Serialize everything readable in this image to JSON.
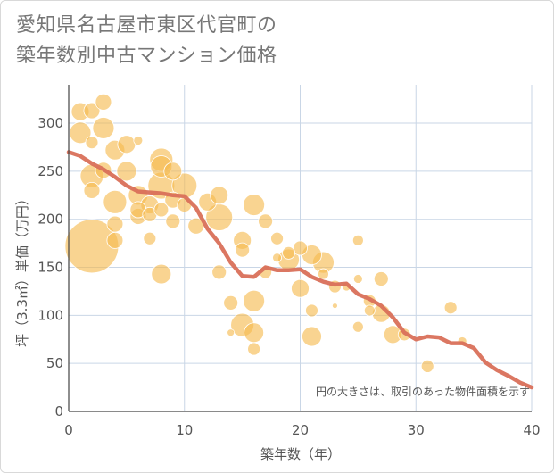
{
  "title_lines": [
    "愛知県名古屋市東区代官町の",
    "築年数別中古マンション価格"
  ],
  "note": "円の大きさは、取引のあった物件面積を示す",
  "colors": {
    "bubble": "#f5b94d",
    "line": "#d9705a",
    "grid": "#c9d6e6"
  },
  "chart_data": {
    "type": "scatter",
    "title": "愛知県名古屋市東区代官町の築年数別中古マンション価格",
    "xlabel": "築年数（年）",
    "ylabel": "坪（3.3㎡）単価（万円）",
    "xlim": [
      0,
      40
    ],
    "ylim": [
      0,
      340
    ],
    "xticks": [
      0,
      10,
      20,
      30,
      40
    ],
    "yticks": [
      0,
      50,
      100,
      150,
      200,
      250,
      300
    ],
    "grid": true,
    "bubbles": [
      {
        "x": 1,
        "y": 312,
        "r": 10
      },
      {
        "x": 2,
        "y": 313,
        "r": 9
      },
      {
        "x": 3,
        "y": 322,
        "r": 9
      },
      {
        "x": 1,
        "y": 290,
        "r": 12
      },
      {
        "x": 2,
        "y": 280,
        "r": 7
      },
      {
        "x": 3,
        "y": 295,
        "r": 12
      },
      {
        "x": 2,
        "y": 245,
        "r": 13
      },
      {
        "x": 3,
        "y": 251,
        "r": 9
      },
      {
        "x": 4,
        "y": 272,
        "r": 11
      },
      {
        "x": 5,
        "y": 278,
        "r": 10
      },
      {
        "x": 6,
        "y": 282,
        "r": 5
      },
      {
        "x": 5,
        "y": 250,
        "r": 11
      },
      {
        "x": 2,
        "y": 230,
        "r": 9
      },
      {
        "x": 4,
        "y": 218,
        "r": 13
      },
      {
        "x": 6,
        "y": 225,
        "r": 11
      },
      {
        "x": 4,
        "y": 195,
        "r": 9
      },
      {
        "x": 6,
        "y": 203,
        "r": 9
      },
      {
        "x": 7,
        "y": 205,
        "r": 8
      },
      {
        "x": 8,
        "y": 262,
        "r": 13
      },
      {
        "x": 8,
        "y": 255,
        "r": 12
      },
      {
        "x": 9,
        "y": 250,
        "r": 10
      },
      {
        "x": 8,
        "y": 235,
        "r": 15
      },
      {
        "x": 10,
        "y": 235,
        "r": 14
      },
      {
        "x": 9,
        "y": 220,
        "r": 9
      },
      {
        "x": 7,
        "y": 215,
        "r": 10
      },
      {
        "x": 6,
        "y": 210,
        "r": 9
      },
      {
        "x": 8,
        "y": 210,
        "r": 8
      },
      {
        "x": 9,
        "y": 198,
        "r": 8
      },
      {
        "x": 7,
        "y": 180,
        "r": 7
      },
      {
        "x": 4,
        "y": 178,
        "r": 9
      },
      {
        "x": 2,
        "y": 172,
        "r": 30
      },
      {
        "x": 8,
        "y": 143,
        "r": 11
      },
      {
        "x": 10,
        "y": 215,
        "r": 8
      },
      {
        "x": 11,
        "y": 193,
        "r": 9
      },
      {
        "x": 12,
        "y": 218,
        "r": 10
      },
      {
        "x": 13,
        "y": 225,
        "r": 10
      },
      {
        "x": 13,
        "y": 202,
        "r": 15
      },
      {
        "x": 13,
        "y": 145,
        "r": 8
      },
      {
        "x": 14,
        "y": 113,
        "r": 8
      },
      {
        "x": 14,
        "y": 82,
        "r": 4
      },
      {
        "x": 15,
        "y": 178,
        "r": 10
      },
      {
        "x": 15,
        "y": 168,
        "r": 8
      },
      {
        "x": 15,
        "y": 90,
        "r": 13
      },
      {
        "x": 16,
        "y": 215,
        "r": 12
      },
      {
        "x": 16,
        "y": 115,
        "r": 12
      },
      {
        "x": 16,
        "y": 82,
        "r": 11
      },
      {
        "x": 16,
        "y": 65,
        "r": 7
      },
      {
        "x": 17,
        "y": 198,
        "r": 8
      },
      {
        "x": 17,
        "y": 145,
        "r": 7
      },
      {
        "x": 18,
        "y": 180,
        "r": 7
      },
      {
        "x": 19,
        "y": 158,
        "r": 12
      },
      {
        "x": 19,
        "y": 165,
        "r": 7
      },
      {
        "x": 20,
        "y": 170,
        "r": 8
      },
      {
        "x": 20,
        "y": 128,
        "r": 10
      },
      {
        "x": 21,
        "y": 163,
        "r": 11
      },
      {
        "x": 21,
        "y": 105,
        "r": 7
      },
      {
        "x": 21,
        "y": 78,
        "r": 11
      },
      {
        "x": 22,
        "y": 155,
        "r": 12
      },
      {
        "x": 22,
        "y": 143,
        "r": 6
      },
      {
        "x": 23,
        "y": 130,
        "r": 7
      },
      {
        "x": 23,
        "y": 110,
        "r": 3
      },
      {
        "x": 24,
        "y": 130,
        "r": 5
      },
      {
        "x": 25,
        "y": 178,
        "r": 6
      },
      {
        "x": 25,
        "y": 138,
        "r": 5
      },
      {
        "x": 25,
        "y": 88,
        "r": 6
      },
      {
        "x": 26,
        "y": 115,
        "r": 7
      },
      {
        "x": 26,
        "y": 105,
        "r": 6
      },
      {
        "x": 27,
        "y": 138,
        "r": 8
      },
      {
        "x": 27,
        "y": 102,
        "r": 10
      },
      {
        "x": 28,
        "y": 80,
        "r": 10
      },
      {
        "x": 29,
        "y": 80,
        "r": 7
      },
      {
        "x": 31,
        "y": 47,
        "r": 7
      },
      {
        "x": 33,
        "y": 108,
        "r": 7
      },
      {
        "x": 34,
        "y": 73,
        "r": 5
      },
      {
        "x": 18,
        "y": 160,
        "r": 5
      }
    ],
    "series": [
      {
        "x": [
          0,
          1,
          2,
          3,
          4,
          5,
          6,
          7,
          8,
          9,
          10,
          11,
          12,
          13,
          14,
          15,
          16,
          17,
          18,
          19,
          20,
          21,
          22,
          23,
          24,
          25,
          26,
          27,
          28,
          29,
          30,
          31,
          32,
          33,
          34,
          35,
          36,
          37,
          38,
          39,
          40
        ],
        "y": [
          270,
          266,
          258,
          252,
          244,
          235,
          229,
          228,
          227,
          225,
          224,
          212,
          190,
          175,
          155,
          141,
          140,
          150,
          147,
          147,
          148,
          140,
          135,
          132,
          133,
          122,
          117,
          110,
          98,
          82,
          75,
          78,
          77,
          71,
          71,
          66,
          51,
          43,
          37,
          30,
          25
        ]
      }
    ]
  }
}
